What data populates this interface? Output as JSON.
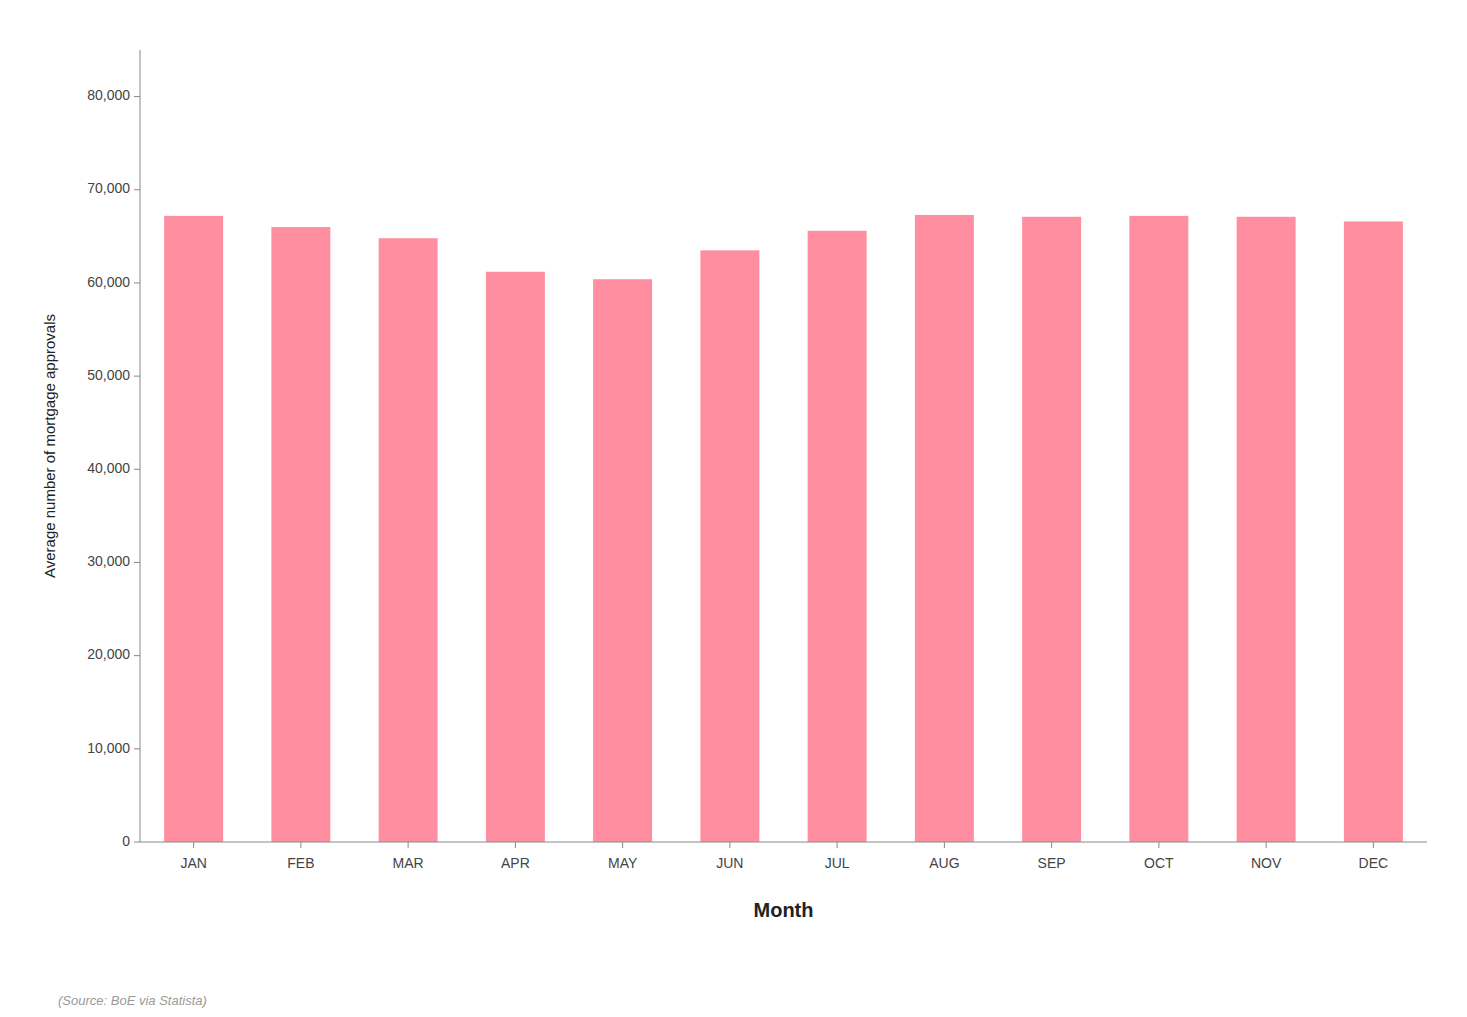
{
  "chart_data": {
    "type": "bar",
    "xlabel": "Month",
    "ylabel": "Average number of mortgage approvals",
    "source": "(Source: BoE via Statista)",
    "categories": [
      "JAN",
      "FEB",
      "MAR",
      "APR",
      "MAY",
      "JUN",
      "JUL",
      "AUG",
      "SEP",
      "OCT",
      "NOV",
      "DEC"
    ],
    "values": [
      67200,
      66000,
      64800,
      61200,
      60400,
      63500,
      65600,
      67300,
      67100,
      67200,
      67100,
      66600
    ],
    "color": "#FF8FA0",
    "ylim": [
      0,
      85000
    ],
    "yticks": [
      0,
      {
        "value": 10000,
        "label": "10,000"
      },
      {
        "value": 20000,
        "label": "20,000"
      },
      {
        "value": 30000,
        "label": "30,000"
      },
      {
        "value": 40000,
        "label": "40,000"
      },
      {
        "value": 50000,
        "label": "50,000"
      },
      {
        "value": 60000,
        "label": "60,000"
      },
      {
        "value": 70000,
        "label": "70,000"
      },
      {
        "value": 80000,
        "label": "80,000"
      }
    ],
    "grid": false
  }
}
